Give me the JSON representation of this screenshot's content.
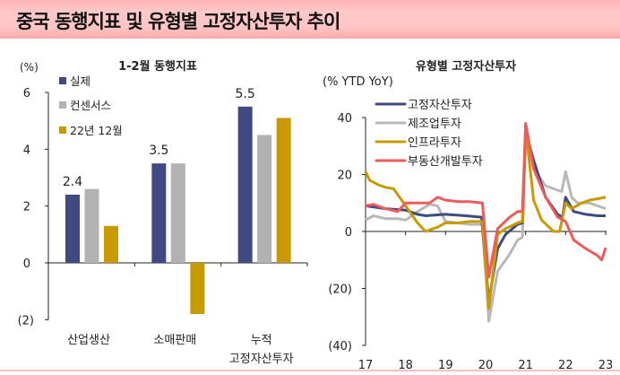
{
  "header": {
    "title": "중국 동행지표 및 유형별 고정자산투자 추이"
  },
  "colors": {
    "actual": "#3f4b80",
    "consensus": "#b2b2b2",
    "prev": "#c99a00",
    "fai": "#3f4b80",
    "mfg": "#b8b8b8",
    "infra": "#c99a00",
    "realestate": "#f05a5a"
  },
  "chart_data": [
    {
      "type": "bar",
      "title": "1-2월 동행지표",
      "ylabel": "(%)",
      "ylim": [
        -2,
        6
      ],
      "yticks": [
        "(2)",
        "0",
        "2",
        "4",
        "6"
      ],
      "yticks_values": [
        -2,
        0,
        2,
        4,
        6
      ],
      "categories": [
        "산업생산",
        "소매판매",
        "누적 고정자산투자"
      ],
      "category_lines": [
        [
          "산업생산"
        ],
        [
          "소매판매"
        ],
        [
          "누적",
          "고정자산투자"
        ]
      ],
      "legend_placement": "top-left",
      "series": [
        {
          "name": "실제",
          "values": [
            2.4,
            3.5,
            5.5
          ]
        },
        {
          "name": "컨센서스",
          "values": [
            2.6,
            3.5,
            4.5
          ]
        },
        {
          "name": "22년 12월",
          "values": [
            1.3,
            -1.8,
            5.1
          ]
        }
      ],
      "data_labels": [
        "2.4",
        "3.5",
        "5.5"
      ]
    },
    {
      "type": "line",
      "title": "유형별 고정자산투자",
      "ylabel": "(% YTD  YoY)",
      "ylim": [
        -40,
        40
      ],
      "yticks": [
        "(40)",
        "(20)",
        "0",
        "20",
        "40"
      ],
      "yticks_values": [
        -40,
        -20,
        0,
        20,
        40
      ],
      "xlim": [
        2017,
        2023
      ],
      "xticks": [
        "17",
        "18",
        "19",
        "20",
        "21",
        "22",
        "23"
      ],
      "legend_placement": "top-left",
      "series": [
        {
          "name": "고정자산투자",
          "x": [
            17.0,
            17.5,
            18.0,
            18.3,
            18.5,
            19.0,
            19.5,
            19.9,
            20.08,
            20.3,
            20.5,
            20.8,
            20.92,
            21.0,
            21.2,
            21.5,
            21.8,
            21.92,
            22.0,
            22.2,
            22.5,
            22.8,
            23.0
          ],
          "y": [
            9,
            8,
            7.5,
            6,
            5.5,
            6,
            5.5,
            5,
            -24.5,
            -6,
            -1,
            2.5,
            3,
            35,
            25,
            12,
            6,
            5,
            12,
            7,
            6,
            5.5,
            5.5
          ]
        },
        {
          "name": "제조업투자",
          "x": [
            17.0,
            17.2,
            17.5,
            17.8,
            18.0,
            18.3,
            18.6,
            18.8,
            19.0,
            19.3,
            19.6,
            19.92,
            20.08,
            20.3,
            20.6,
            20.8,
            20.92,
            21.0,
            21.2,
            21.5,
            21.9,
            22.0,
            22.15,
            22.3,
            22.6,
            22.8,
            23.0
          ],
          "y": [
            4,
            5.5,
            4.5,
            4.5,
            4,
            7,
            9.5,
            9,
            3.5,
            3,
            2.5,
            2.5,
            -31.5,
            -14,
            -8,
            -3,
            -2,
            37,
            22,
            16,
            14,
            21,
            12,
            10,
            10,
            9,
            8
          ]
        },
        {
          "name": "인프라투자",
          "x": [
            17.0,
            17.1,
            17.3,
            17.5,
            17.7,
            18.0,
            18.3,
            18.5,
            18.8,
            19.0,
            19.3,
            19.6,
            19.92,
            20.08,
            20.3,
            20.5,
            20.8,
            20.92,
            21.0,
            21.2,
            21.4,
            21.7,
            21.85,
            22.0,
            22.15,
            22.4,
            22.6,
            22.8,
            23.0
          ],
          "y": [
            21,
            18,
            16.5,
            15.5,
            15,
            9,
            3,
            0,
            1.5,
            3,
            3,
            3.5,
            3.5,
            -27,
            -1,
            1,
            3,
            3.5,
            36,
            11,
            4,
            0,
            0,
            10,
            8,
            10,
            11,
            11.5,
            12
          ]
        },
        {
          "name": "부동산개발투자",
          "x": [
            17.0,
            17.2,
            17.5,
            17.8,
            18.0,
            18.3,
            18.6,
            18.8,
            19.0,
            19.3,
            19.6,
            19.92,
            20.08,
            20.3,
            20.6,
            20.8,
            20.92,
            21.0,
            21.2,
            21.5,
            21.8,
            22.0,
            22.2,
            22.5,
            22.8,
            22.9,
            23.0
          ],
          "y": [
            9,
            9.5,
            8,
            7,
            10,
            10,
            10,
            12,
            11,
            10.5,
            10.5,
            10,
            -16,
            1,
            5,
            7,
            7,
            38,
            22,
            12,
            5,
            3.5,
            -3,
            -6,
            -8.5,
            -10,
            -5.7
          ]
        }
      ]
    }
  ]
}
